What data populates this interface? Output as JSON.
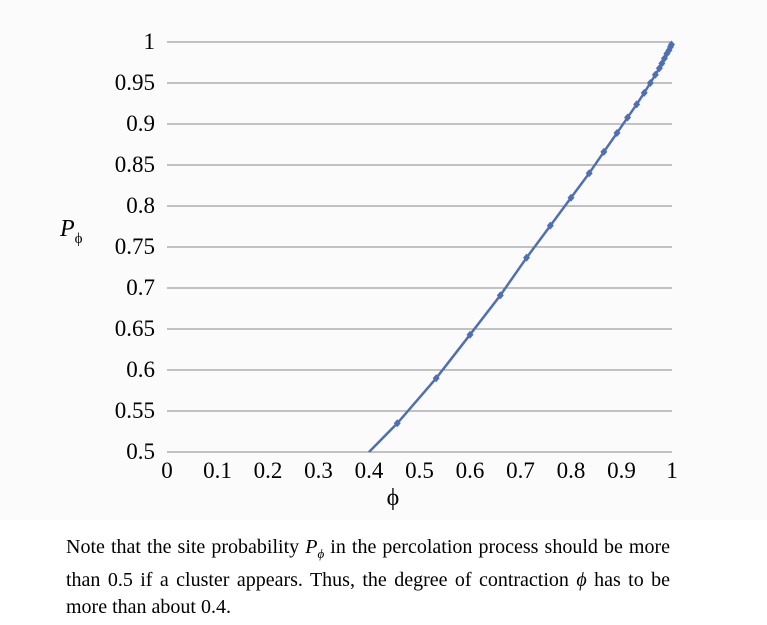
{
  "chart_data": {
    "type": "line",
    "title": "",
    "xlabel": "ϕ",
    "ylabel_main": "P",
    "ylabel_sub": "ϕ",
    "xlim": [
      0,
      1
    ],
    "ylim": [
      0.5,
      1
    ],
    "x_ticks": [
      "0",
      "0.1",
      "0.2",
      "0.3",
      "0.4",
      "0.5",
      "0.6",
      "0.7",
      "0.8",
      "0.9",
      "1"
    ],
    "x_tick_values": [
      0,
      0.1,
      0.2,
      0.3,
      0.4,
      0.5,
      0.6,
      0.7,
      0.8,
      0.9,
      1
    ],
    "y_ticks": [
      "0.5",
      "0.55",
      "0.6",
      "0.65",
      "0.7",
      "0.75",
      "0.8",
      "0.85",
      "0.9",
      "0.95",
      "1"
    ],
    "y_tick_values": [
      0.5,
      0.55,
      0.6,
      0.65,
      0.7,
      0.75,
      0.8,
      0.85,
      0.9,
      0.95,
      1
    ],
    "grid": "horizontal",
    "series": [
      {
        "color": "#4f6fb5",
        "x": [
          0.4,
          0.456,
          0.533,
          0.6,
          0.66,
          0.712,
          0.759,
          0.8,
          0.836,
          0.865,
          0.891,
          0.912,
          0.93,
          0.945,
          0.957,
          0.967,
          0.975,
          0.98,
          0.985,
          0.99,
          0.994,
          0.997,
          0.999
        ],
        "y": [
          0.5,
          0.535,
          0.59,
          0.643,
          0.691,
          0.737,
          0.776,
          0.81,
          0.84,
          0.866,
          0.889,
          0.908,
          0.924,
          0.938,
          0.95,
          0.96,
          0.968,
          0.974,
          0.98,
          0.986,
          0.99,
          0.994,
          0.997
        ]
      }
    ]
  },
  "caption": {
    "part1": "Note that the site probability ",
    "sym1": "P",
    "sym1_sub": "ϕ",
    "part2": " in the percolation process should be more than 0.5 if a cluster appears. Thus, the degree of contraction ",
    "sym2": "ϕ",
    "part3": " has to be more than about 0.4."
  }
}
